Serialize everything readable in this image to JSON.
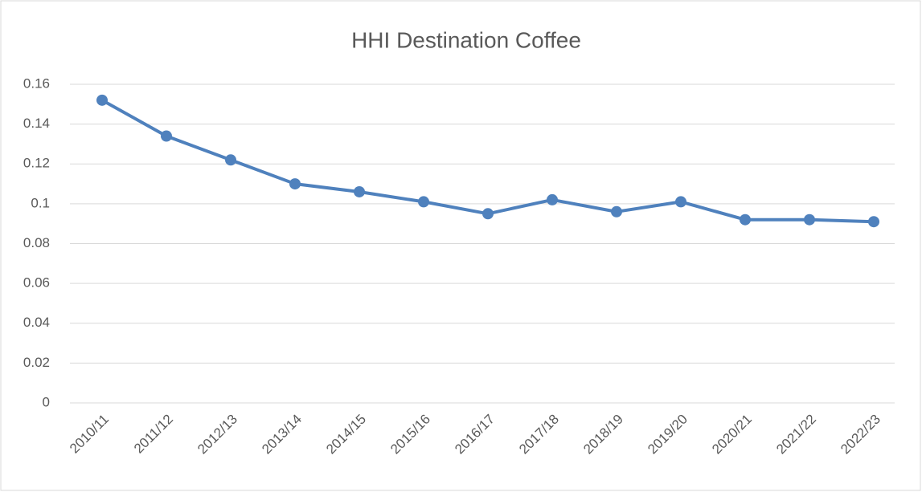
{
  "chart_data": {
    "type": "line",
    "title": "HHI Destination Coffee",
    "categories": [
      "2010/11",
      "2011/12",
      "2012/13",
      "2013/14",
      "2014/15",
      "2015/16",
      "2016/17",
      "2017/18",
      "2018/19",
      "2019/20",
      "2020/21",
      "2021/22",
      "2022/23"
    ],
    "series": [
      {
        "name": "HHI",
        "color": "#4f81bd",
        "values": [
          0.152,
          0.134,
          0.122,
          0.11,
          0.106,
          0.101,
          0.095,
          0.102,
          0.096,
          0.101,
          0.092,
          0.092,
          0.091
        ]
      }
    ],
    "ylim": [
      0,
      0.16
    ],
    "yticks": [
      0,
      0.02,
      0.04,
      0.06,
      0.08,
      0.1,
      0.12,
      0.14,
      0.16
    ],
    "grid": true,
    "legend": false
  }
}
